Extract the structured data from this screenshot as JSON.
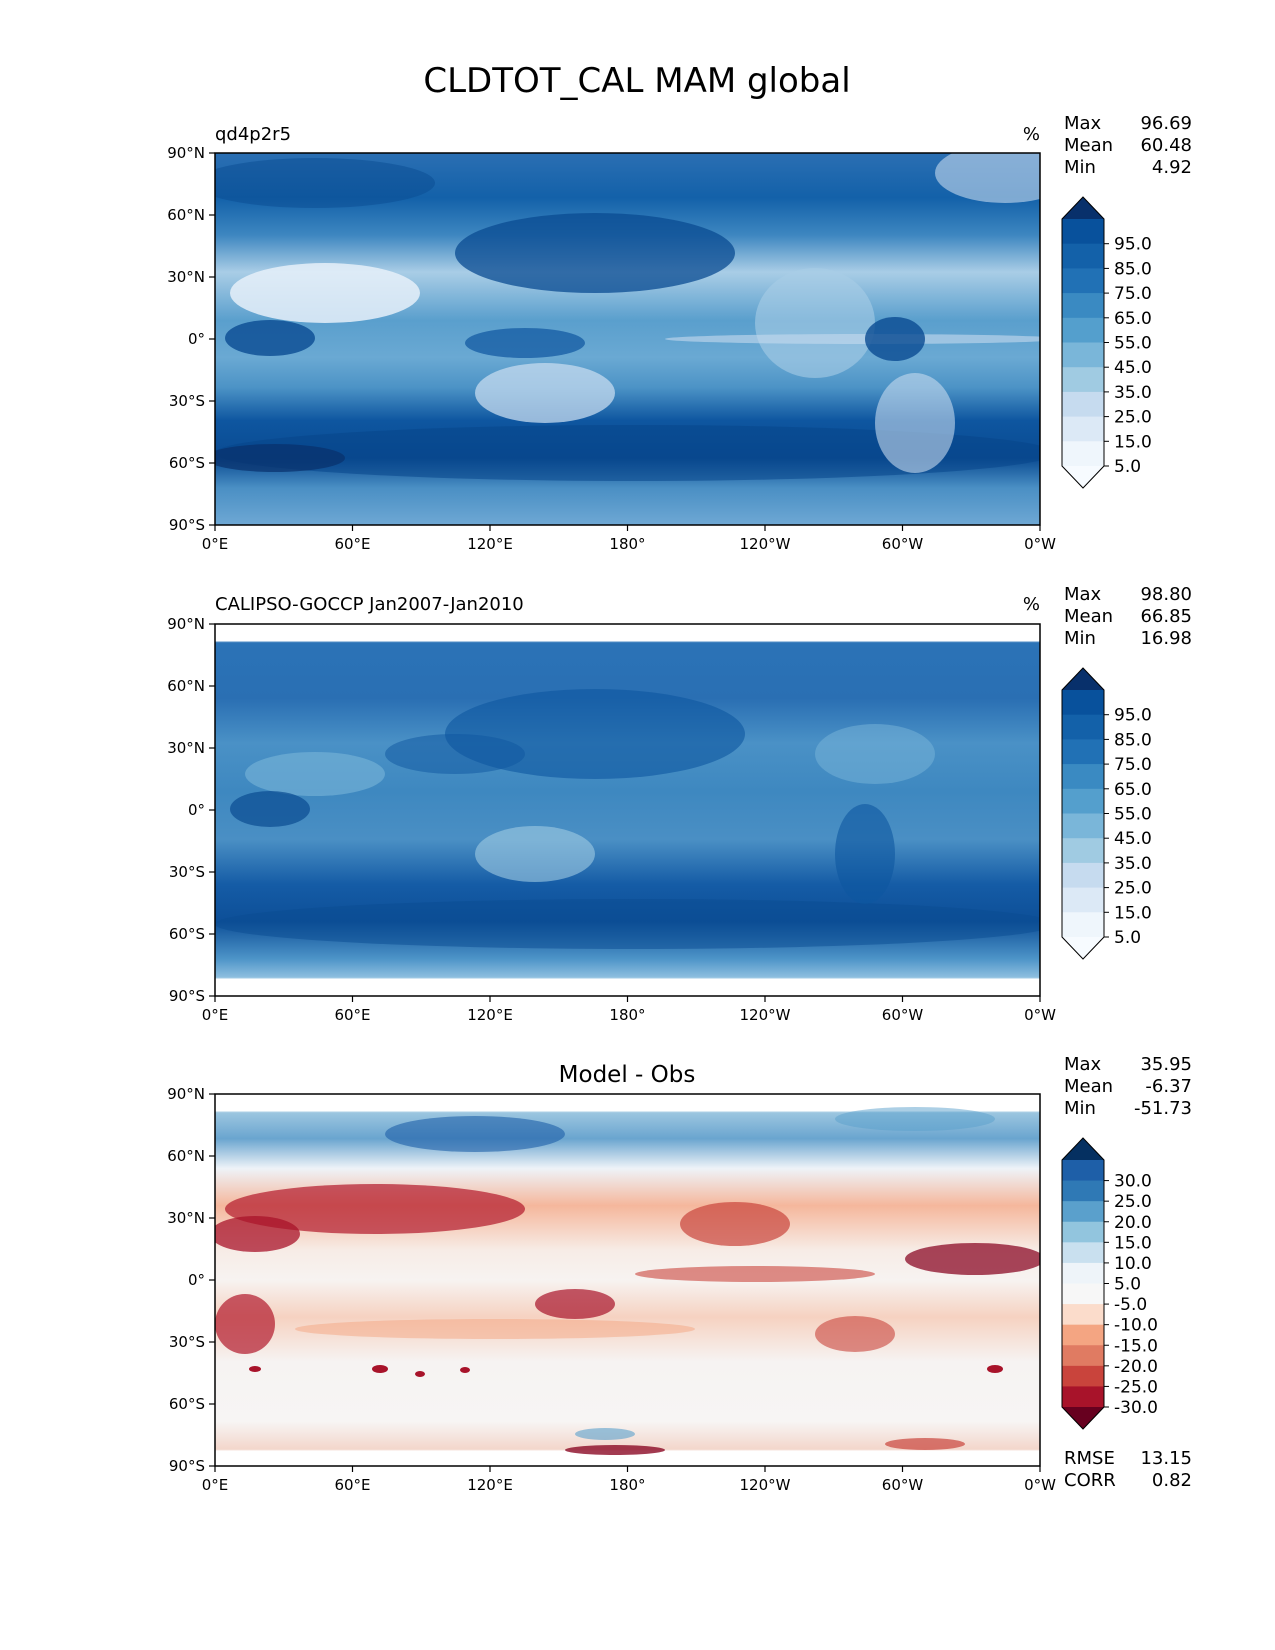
{
  "figure": {
    "title": "CLDTOT_CAL MAM global"
  },
  "axes": {
    "lat_ticks": [
      "90°N",
      "60°N",
      "30°N",
      "0°",
      "30°S",
      "60°S",
      "90°S"
    ],
    "lon_ticks": [
      "0°E",
      "60°E",
      "120°E",
      "180°",
      "120°W",
      "60°W",
      "0°W"
    ]
  },
  "panels": [
    {
      "id": "model",
      "left_label": "qd4p2r5",
      "center_label": "",
      "units": "%",
      "stats": [
        {
          "label": "Max",
          "value": "96.69"
        },
        {
          "label": "Mean",
          "value": "60.48"
        },
        {
          "label": "Min",
          "value": "4.92"
        }
      ],
      "colorbar": {
        "labels": [
          "95.0",
          "85.0",
          "75.0",
          "65.0",
          "55.0",
          "45.0",
          "35.0",
          "25.0",
          "15.0",
          "5.0"
        ],
        "colors": [
          "#08306b",
          "#08519c",
          "#1361a9",
          "#2171b5",
          "#3a8ac2",
          "#549fcd",
          "#7ab6d9",
          "#a0cbe2",
          "#c6dbef",
          "#dce9f6",
          "#eff6fc",
          "#f7fbff"
        ]
      },
      "extra_stats": []
    },
    {
      "id": "obs",
      "left_label": "CALIPSO-GOCCP Jan2007-Jan2010",
      "center_label": "",
      "units": "%",
      "stats": [
        {
          "label": "Max",
          "value": "98.80"
        },
        {
          "label": "Mean",
          "value": "66.85"
        },
        {
          "label": "Min",
          "value": "16.98"
        }
      ],
      "colorbar": {
        "labels": [
          "95.0",
          "85.0",
          "75.0",
          "65.0",
          "55.0",
          "45.0",
          "35.0",
          "25.0",
          "15.0",
          "5.0"
        ],
        "colors": [
          "#08306b",
          "#08519c",
          "#1361a9",
          "#2171b5",
          "#3a8ac2",
          "#549fcd",
          "#7ab6d9",
          "#a0cbe2",
          "#c6dbef",
          "#dce9f6",
          "#eff6fc",
          "#f7fbff"
        ]
      },
      "extra_stats": []
    },
    {
      "id": "diff",
      "left_label": "",
      "center_label": "Model - Obs",
      "units": "",
      "stats": [
        {
          "label": "Max",
          "value": "35.95"
        },
        {
          "label": "Mean",
          "value": "-6.37"
        },
        {
          "label": "Min",
          "value": "-51.73"
        }
      ],
      "colorbar": {
        "labels": [
          "30.0",
          "25.0",
          "20.0",
          "15.0",
          "10.0",
          "5.0",
          "-5.0",
          "-10.0",
          "-15.0",
          "-20.0",
          "-25.0",
          "-30.0"
        ],
        "colors": [
          "#053061",
          "#1e5fa8",
          "#2f79b5",
          "#5aa0cc",
          "#92c5de",
          "#c9e0ef",
          "#eef4f9",
          "#f7f7f7",
          "#fbdccb",
          "#f4a582",
          "#e07b62",
          "#c9443c",
          "#a8132a",
          "#67001f"
        ]
      },
      "extra_stats": [
        {
          "label": "RMSE",
          "value": "13.15"
        },
        {
          "label": "CORR",
          "value": "0.82"
        }
      ]
    }
  ]
}
